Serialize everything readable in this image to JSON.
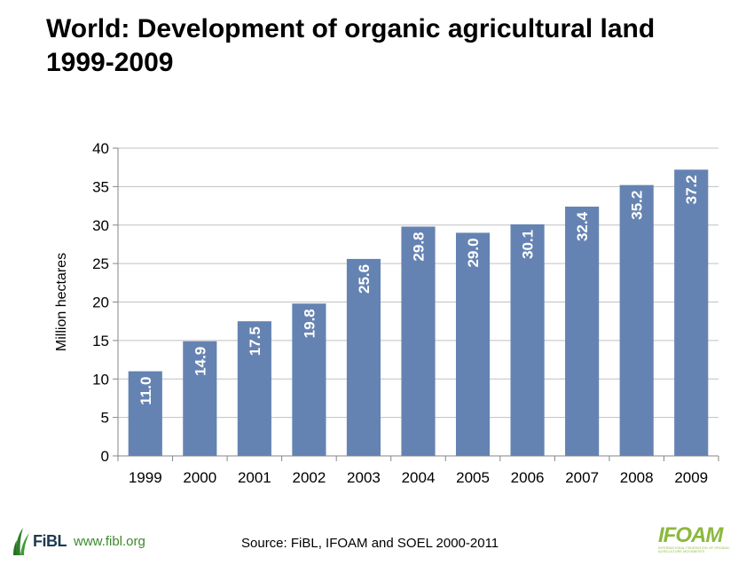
{
  "title": {
    "line1": "World: Development of organic agricultural land",
    "line2": "1999-2009"
  },
  "source": "Source: FiBL, IFOAM  and SOEL 2000-2011",
  "branding": {
    "fibl_text": "FiBL",
    "fibl_url": "www.fibl.org",
    "ifoam_text": "IFOAM",
    "ifoam_subtitle": "INTERNATIONAL FEDERATION OF ORGANIC AGRICULTURE MOVEMENTS"
  },
  "colors": {
    "bar": "#6583B2",
    "grid": "#c0c0c0",
    "fibl_green": "#3a8a2c",
    "ifoam_green": "#8cb83c"
  },
  "chart_data": {
    "type": "bar",
    "title": "World: Development of organic agricultural land 1999-2009",
    "xlabel": "",
    "ylabel": "Million hectares",
    "categories": [
      "1999",
      "2000",
      "2001",
      "2002",
      "2003",
      "2004",
      "2005",
      "2006",
      "2007",
      "2008",
      "2009"
    ],
    "values": [
      11.0,
      14.9,
      17.5,
      19.8,
      25.6,
      29.8,
      29.0,
      30.1,
      32.4,
      35.2,
      37.2
    ],
    "data_labels": [
      "11.0",
      "14.9",
      "17.5",
      "19.8",
      "25.6",
      "29.8",
      "29.0",
      "30.1",
      "32.4",
      "35.2",
      "37.2"
    ],
    "ylim": [
      0,
      40
    ],
    "yticks": [
      0,
      5,
      10,
      15,
      20,
      25,
      30,
      35,
      40
    ],
    "grid": true,
    "legend": "none"
  }
}
